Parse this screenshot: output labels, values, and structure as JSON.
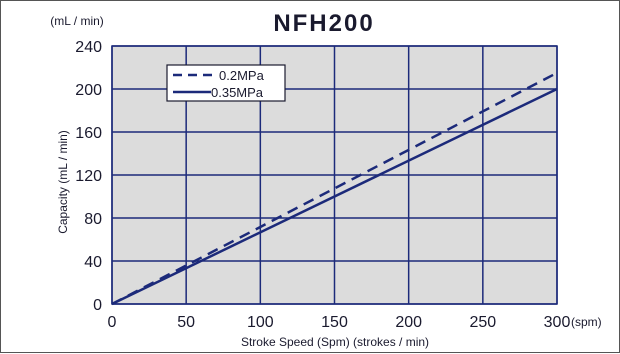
{
  "chart_data": {
    "type": "line",
    "title": "NFH200",
    "y_unit_label": "(mL / min)",
    "x_unit_label": "(spm)",
    "xlabel": "Stroke Speed (Spm) (strokes / min)",
    "ylabel": "Capacity (mL / min)",
    "xlim": [
      0,
      300
    ],
    "ylim": [
      0,
      240
    ],
    "x_ticks": [
      0,
      50,
      100,
      150,
      200,
      250,
      300
    ],
    "y_ticks": [
      0,
      40,
      80,
      120,
      160,
      200,
      240
    ],
    "grid": true,
    "legend_position": "top-left",
    "series": [
      {
        "name": "0.2MPa",
        "style": "dashed",
        "x": [
          0,
          300
        ],
        "y": [
          0,
          215
        ]
      },
      {
        "name": "0.35MPa",
        "style": "solid",
        "x": [
          0,
          300
        ],
        "y": [
          0,
          200
        ]
      }
    ]
  },
  "colors": {
    "plot_background": "#dcdcdc",
    "grid": "#1c2a7a",
    "line": "#1c2a7a",
    "title": "#7a7a7a",
    "text": "#1a1a2e"
  }
}
